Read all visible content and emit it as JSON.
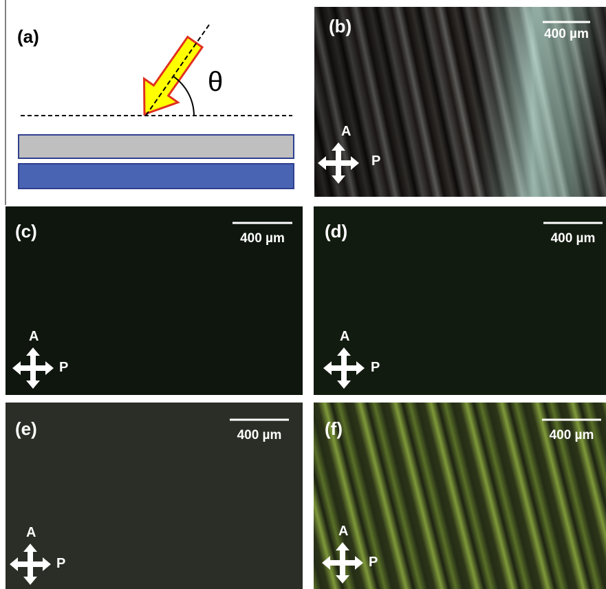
{
  "panels": [
    {
      "label": "(a)",
      "angle_symbol": "θ"
    },
    {
      "label": "(b)",
      "scale_bar": "400 µm",
      "analyzer": "A",
      "polarizer": "P"
    },
    {
      "label": "(c)",
      "scale_bar": "400 µm",
      "analyzer": "A",
      "polarizer": "P"
    },
    {
      "label": "(d)",
      "scale_bar": "400 µm",
      "analyzer": "A",
      "polarizer": "P"
    },
    {
      "label": "(e)",
      "scale_bar": "400 µm",
      "analyzer": "A",
      "polarizer": "P"
    },
    {
      "label": "(f)",
      "scale_bar": "400 µm",
      "analyzer": "A",
      "polarizer": "P"
    }
  ]
}
